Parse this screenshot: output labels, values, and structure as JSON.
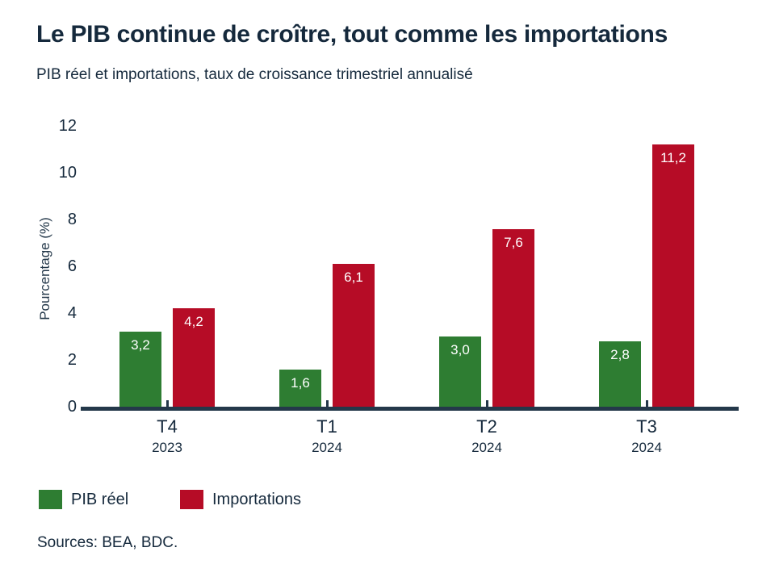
{
  "title": "Le PIB continue de croître, tout comme les importations",
  "subtitle": "PIB réel et importations, taux de croissance trimestriel annualisé",
  "source": "Sources: BEA, BDC.",
  "colors": {
    "gdp_green": "#2e7d32",
    "imports_red": "#b60c26",
    "text_navy": "#15293c",
    "axis_navy": "#24384a",
    "value_label": "#ffffff"
  },
  "chart_data": {
    "type": "bar",
    "title": "Le PIB continue de croître, tout comme les importations",
    "subtitle": "PIB réel et importations, taux de croissance trimestriel annualisé",
    "categories": [
      "T4 2023",
      "T1 2024",
      "T2 2024",
      "T3 2024"
    ],
    "category_quarters": [
      "T4",
      "T1",
      "T2",
      "T3"
    ],
    "category_years": [
      "2023",
      "2024",
      "2024",
      "2024"
    ],
    "series": [
      {
        "name": "PIB réel",
        "color": "#2e7d32",
        "values": [
          3.2,
          1.6,
          3.0,
          2.8
        ],
        "labels": [
          "3,2",
          "1,6",
          "3,0",
          "2,8"
        ]
      },
      {
        "name": "Importations",
        "color": "#b60c26",
        "values": [
          4.2,
          6.1,
          7.6,
          11.2
        ],
        "labels": [
          "4,2",
          "6,1",
          "7,6",
          "11,2"
        ]
      }
    ],
    "xlabel": "",
    "ylabel": "Pourcentage (%)",
    "yticks": [
      0,
      2,
      4,
      6,
      8,
      10,
      12
    ],
    "ylim": [
      0,
      12
    ],
    "grid": false,
    "legend_position": "bottom-left"
  },
  "legend": {
    "items": [
      {
        "label": "PIB réel",
        "color": "#2e7d32"
      },
      {
        "label": "Importations",
        "color": "#b60c26"
      }
    ]
  }
}
